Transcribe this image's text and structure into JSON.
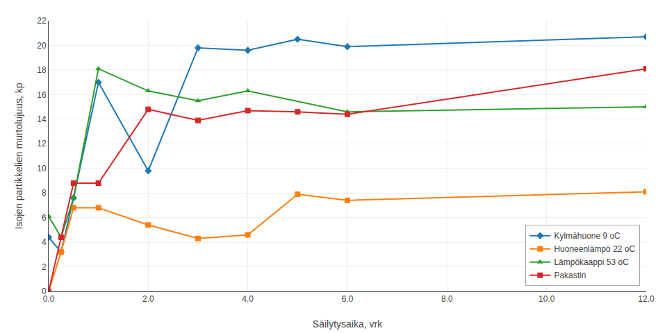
{
  "chart_data": {
    "type": "line",
    "xlabel": "Säilytysaika, vrk",
    "ylabel": "Isojen partikkelien murtolujuus, kp",
    "xlim": [
      0.0,
      12.0
    ],
    "ylim": [
      0,
      22
    ],
    "xticks": [
      {
        "value": 0.0,
        "label": "0.0"
      },
      {
        "value": 2.0,
        "label": "2.0"
      },
      {
        "value": 4.0,
        "label": "4.0"
      },
      {
        "value": 6.0,
        "label": "6.0"
      },
      {
        "value": 8.0,
        "label": "8.0"
      },
      {
        "value": 10.0,
        "label": "10.0"
      },
      {
        "value": 12.0,
        "label": "12.0"
      }
    ],
    "yticks": [
      0,
      2,
      4,
      6,
      8,
      10,
      12,
      14,
      16,
      18,
      20,
      22
    ],
    "grid": true,
    "legend": "lower right",
    "series": [
      {
        "name": "Kylmähuone 9 oC",
        "marker": "diamond",
        "x": [
          0.0,
          0.25,
          0.5,
          1.0,
          2.0,
          3.0,
          4.0,
          5.0,
          6.0,
          12.0
        ],
        "values": [
          4.4,
          3.2,
          7.6,
          17.0,
          9.8,
          19.8,
          19.6,
          20.5,
          19.9,
          20.7
        ]
      },
      {
        "name": "Huoneenlämpö 22 oC",
        "marker": "square",
        "x": [
          0.0,
          0.25,
          0.5,
          1.0,
          2.0,
          3.0,
          4.0,
          5.0,
          6.0,
          12.0
        ],
        "values": [
          0.0,
          3.2,
          6.8,
          6.8,
          5.4,
          4.3,
          4.6,
          7.9,
          7.4,
          8.1
        ]
      },
      {
        "name": "Lämpökaappi 53 oC",
        "marker": "triangle-up",
        "x": [
          0.0,
          0.25,
          0.5,
          1.0,
          2.0,
          3.0,
          4.0,
          6.0,
          12.0
        ],
        "values": [
          6.1,
          4.4,
          7.6,
          18.1,
          16.3,
          15.5,
          16.3,
          14.6,
          15.0
        ]
      },
      {
        "name": "Pakastin",
        "marker": "square",
        "x": [
          0.0,
          0.25,
          0.5,
          1.0,
          2.0,
          3.0,
          4.0,
          5.0,
          6.0,
          12.0
        ],
        "values": [
          0.0,
          4.4,
          8.8,
          8.8,
          14.8,
          13.9,
          14.7,
          14.6,
          14.4,
          18.1
        ]
      }
    ]
  }
}
